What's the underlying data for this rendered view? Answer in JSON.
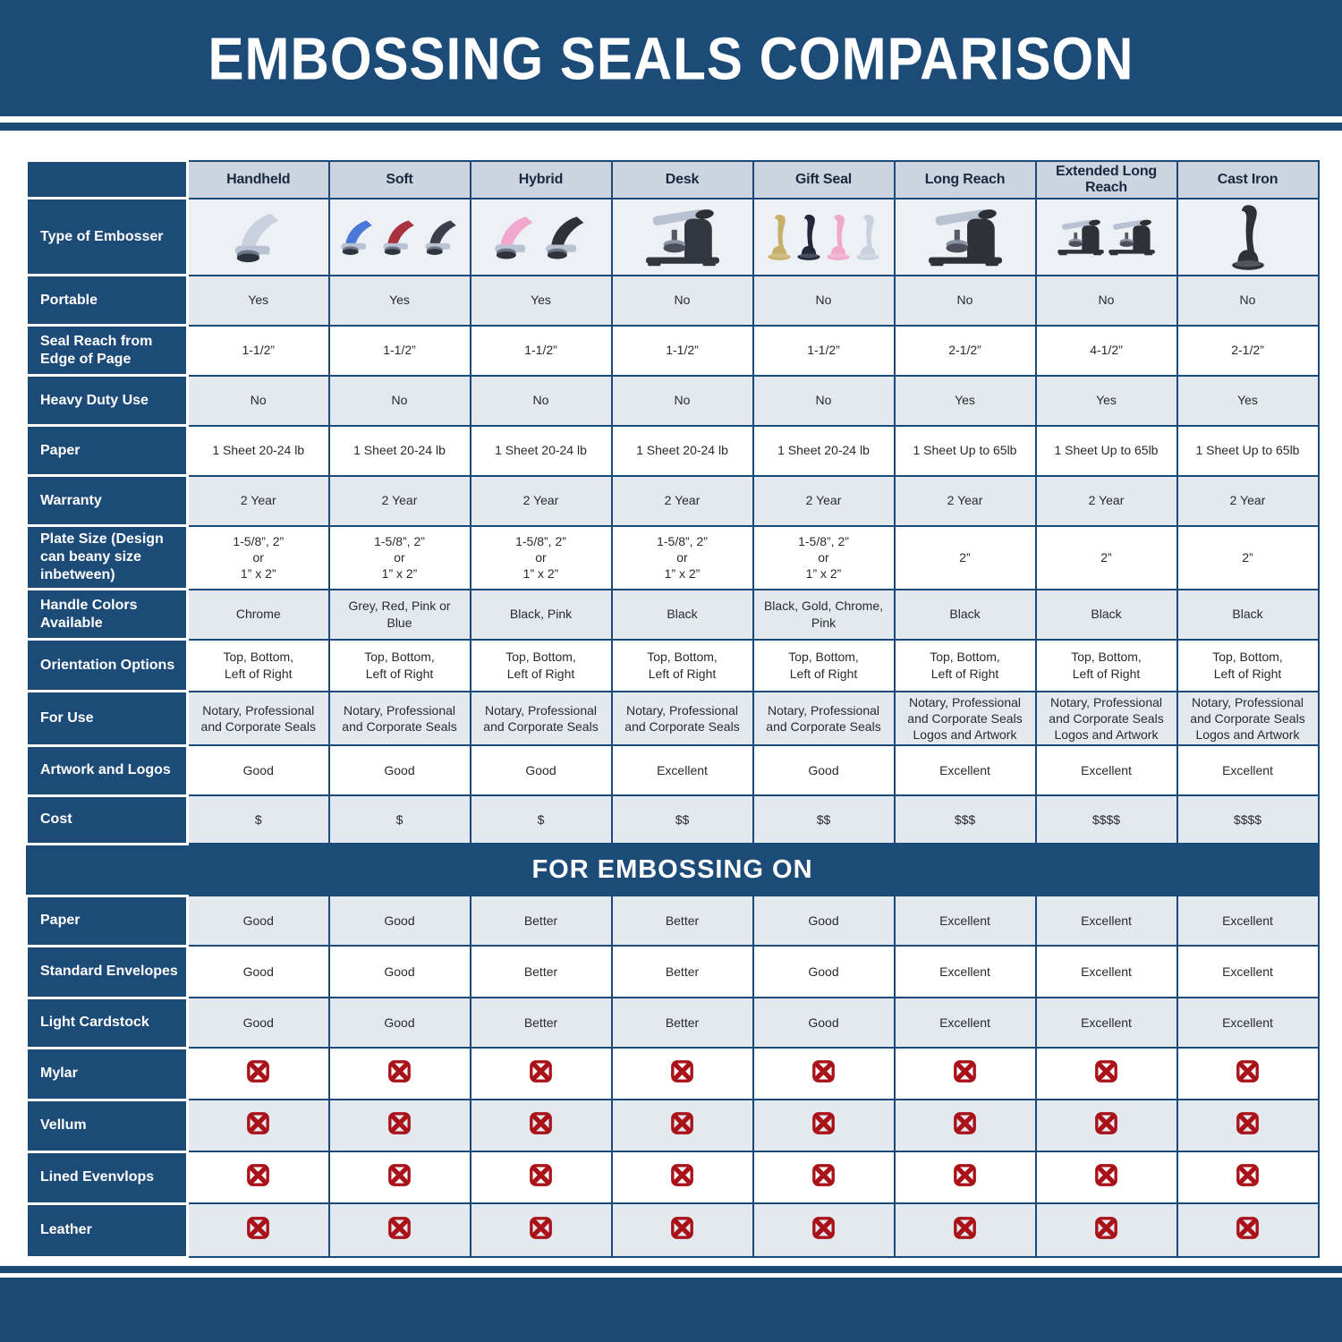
{
  "colors": {
    "banner_blue": "#1d4b78",
    "border_blue": "#1c4a78",
    "shade_row": "#e4e9f0",
    "header_cell": "#ccd4df",
    "x_red": "#a91218",
    "metal_silver": "#b9c2d2"
  },
  "chart_data": {
    "type": "table",
    "title": "EMBOSSING SEALS COMPARISON",
    "row_header_label": "Type of Embosser",
    "columns": [
      "Handheld",
      "Soft",
      "Hybrid",
      "Desk",
      "Gift Seal",
      "Long Reach",
      "Extended Long Reach",
      "Cast Iron"
    ],
    "embosser_images": [
      {
        "icon": "handheld-embosser-photo",
        "shape": "press",
        "colors": [
          "#c9d0de"
        ]
      },
      {
        "icon": "soft-embossers-photo",
        "shape": "press",
        "colors": [
          "#4a78d8",
          "#a83240",
          "#3a3f4a"
        ]
      },
      {
        "icon": "hybrid-embossers-photo",
        "shape": "press",
        "colors": [
          "#f0a8cc",
          "#2e3138"
        ]
      },
      {
        "icon": "desk-embosser-photo",
        "shape": "desk",
        "colors": [
          "#32363f"
        ]
      },
      {
        "icon": "gift-seal-embossers-photo",
        "shape": "upright",
        "colors": [
          "#c8b06a",
          "#23273a",
          "#f0a8cc",
          "#c9d0de"
        ]
      },
      {
        "icon": "long-reach-embosser-photo",
        "shape": "desk",
        "colors": [
          "#2e3138"
        ]
      },
      {
        "icon": "extended-long-reach-embossers-photo",
        "shape": "desk",
        "colors": [
          "#2e3138",
          "#2e3138"
        ]
      },
      {
        "icon": "cast-iron-embosser-photo",
        "shape": "upright",
        "colors": [
          "#2e3138"
        ]
      }
    ],
    "spec_rows": [
      {
        "label": "Portable",
        "values": [
          "Yes",
          "Yes",
          "Yes",
          "No",
          "No",
          "No",
          "No",
          "No"
        ]
      },
      {
        "label": "Seal Reach from Edge of Page",
        "values": [
          "1-1/2”",
          "1-1/2”",
          "1-1/2”",
          "1-1/2”",
          "1-1/2”",
          "2-1/2”",
          "4-1/2”",
          "2-1/2”"
        ]
      },
      {
        "label": "Heavy Duty Use",
        "values": [
          "No",
          "No",
          "No",
          "No",
          "No",
          "Yes",
          "Yes",
          "Yes"
        ]
      },
      {
        "label": "Paper",
        "values": [
          "1 Sheet 20-24 lb",
          "1 Sheet 20-24 lb",
          "1 Sheet 20-24 lb",
          "1 Sheet 20-24 lb",
          "1 Sheet 20-24 lb",
          "1 Sheet Up to 65lb",
          "1 Sheet Up to 65lb",
          "1 Sheet Up to 65lb"
        ]
      },
      {
        "label": "Warranty",
        "values": [
          "2 Year",
          "2 Year",
          "2 Year",
          "2 Year",
          "2 Year",
          "2 Year",
          "2 Year",
          "2 Year"
        ]
      },
      {
        "label": "Plate Size (Design can beany size inbetween)",
        "values": [
          "1-5/8”, 2”\nor\n1” x 2”",
          "1-5/8”, 2”\nor\n1” x 2”",
          "1-5/8”, 2”\nor\n1” x 2”",
          "1-5/8”, 2”\nor\n1” x 2”",
          "1-5/8”, 2”\nor\n1” x 2”",
          "2”",
          "2”",
          "2”"
        ]
      },
      {
        "label": "Handle Colors Available",
        "values": [
          "Chrome",
          "Grey, Red, Pink or Blue",
          "Black, Pink",
          "Black",
          "Black, Gold, Chrome, Pink",
          "Black",
          "Black",
          "Black"
        ]
      },
      {
        "label": "Orientation Options",
        "values": [
          "Top, Bottom,\nLeft of Right",
          "Top, Bottom,\nLeft of Right",
          "Top, Bottom,\nLeft of Right",
          "Top, Bottom,\nLeft of Right",
          "Top, Bottom,\nLeft of Right",
          "Top, Bottom,\nLeft of Right",
          "Top, Bottom,\nLeft of Right",
          "Top, Bottom,\nLeft of Right"
        ]
      },
      {
        "label": "For Use",
        "values": [
          "Notary, Professional\nand Corporate Seals",
          "Notary, Professional\nand Corporate Seals",
          "Notary, Professional\nand Corporate Seals",
          "Notary, Professional\nand Corporate Seals",
          "Notary, Professional\nand Corporate Seals",
          "Notary, Professional\nand Corporate Seals\nLogos and Artwork",
          "Notary, Professional\nand Corporate Seals\nLogos and Artwork",
          "Notary, Professional\nand Corporate Seals\nLogos and Artwork"
        ]
      },
      {
        "label": "Artwork and Logos",
        "values": [
          "Good",
          "Good",
          "Good",
          "Excellent",
          "Good",
          "Excellent",
          "Excellent",
          "Excellent"
        ]
      },
      {
        "label": "Cost",
        "values": [
          "$",
          "$",
          "$",
          "$$",
          "$$",
          "$$$",
          "$$$$",
          "$$$$"
        ]
      }
    ],
    "embossing_section_title": "FOR EMBOSSING ON",
    "embossing_rows": [
      {
        "label": "Paper",
        "values": [
          "Good",
          "Good",
          "Better",
          "Better",
          "Good",
          "Excellent",
          "Excellent",
          "Excellent"
        ]
      },
      {
        "label": "Standard Envelopes",
        "values": [
          "Good",
          "Good",
          "Better",
          "Better",
          "Good",
          "Excellent",
          "Excellent",
          "Excellent"
        ]
      },
      {
        "label": "Light Cardstock",
        "values": [
          "Good",
          "Good",
          "Better",
          "Better",
          "Good",
          "Excellent",
          "Excellent",
          "Excellent"
        ]
      },
      {
        "label": "Mylar",
        "icon": "red-x-icon",
        "values": [
          "x",
          "x",
          "x",
          "x",
          "x",
          "x",
          "x",
          "x"
        ]
      },
      {
        "label": "Vellum",
        "icon": "red-x-icon",
        "values": [
          "x",
          "x",
          "x",
          "x",
          "x",
          "x",
          "x",
          "x"
        ]
      },
      {
        "label": "Lined Evenvlops",
        "icon": "red-x-icon",
        "values": [
          "x",
          "x",
          "x",
          "x",
          "x",
          "x",
          "x",
          "x"
        ]
      },
      {
        "label": "Leather",
        "icon": "red-x-icon",
        "values": [
          "x",
          "x",
          "x",
          "x",
          "x",
          "x",
          "x",
          "x"
        ]
      }
    ]
  }
}
